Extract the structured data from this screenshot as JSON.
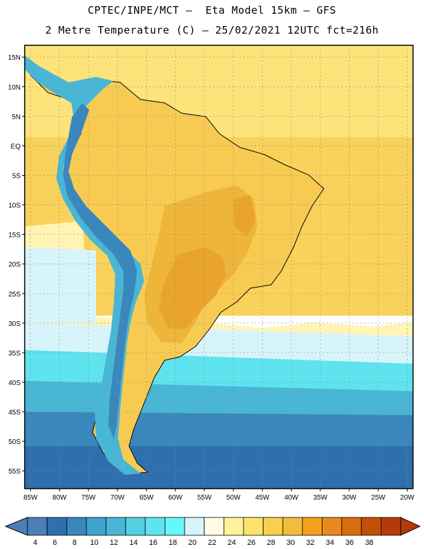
{
  "header": {
    "line1": "CPTEC/INPE/MCT –  Eta Model 15km – GFS",
    "line2": "2 Metre Temperature (C) – 25/02/2021 12UTC fct=216h"
  },
  "map": {
    "lat_labels": [
      "15N",
      "10N",
      "5N",
      "EQ",
      "5S",
      "10S",
      "15S",
      "20S",
      "25S",
      "30S",
      "35S",
      "40S",
      "45S",
      "50S",
      "55S"
    ],
    "lon_labels": [
      "85W",
      "80W",
      "75W",
      "70W",
      "65W",
      "60W",
      "55W",
      "50W",
      "45W",
      "40W",
      "35W",
      "30W",
      "25W",
      "20W"
    ],
    "lat_values": [
      15,
      10,
      5,
      0,
      -5,
      -10,
      -15,
      -20,
      -25,
      -30,
      -35,
      -40,
      -45,
      -50,
      -55
    ],
    "lon_values": [
      -85,
      -80,
      -75,
      -70,
      -65,
      -60,
      -55,
      -50,
      -45,
      -40,
      -35,
      -30,
      -25,
      -20
    ],
    "lat_range": [
      -58,
      17
    ],
    "lon_range": [
      -86,
      -19
    ]
  },
  "colorbar": {
    "labels": [
      "4",
      "6",
      "8",
      "10",
      "12",
      "14",
      "16",
      "18",
      "20",
      "22",
      "24",
      "26",
      "28",
      "30",
      "32",
      "34",
      "36",
      "38"
    ],
    "colors": [
      "#4a7fb8",
      "#2f6fae",
      "#3a87bd",
      "#3fa2cd",
      "#49b6d6",
      "#55cfe2",
      "#5fe3ef",
      "#66f7fb",
      "#d8f4fb",
      "#fffbe6",
      "#fff39a",
      "#fde26a",
      "#f8d04e",
      "#f2bd3d",
      "#f3a21d",
      "#ea8a1e",
      "#d86d10",
      "#c24e08",
      "#b53a0a"
    ],
    "low_color": "#4a7fb8",
    "high_color": "#b53a0a"
  },
  "colors": {
    "ocean_tropical": "#fde37a",
    "ocean_warm": "#f8d25a",
    "ocean_mild": "#fff4b4",
    "ocean_cool": "#d8f4fb",
    "ocean_cyan": "#5fe3ef",
    "ocean_mid": "#49b6d6",
    "ocean_cold": "#3a87bd",
    "ocean_polar": "#2f6fae",
    "land_base": "#f7cb52",
    "land_hot": "#efb43a",
    "land_hotter": "#e9a42c",
    "andes": "#49b6d6",
    "andes_high": "#3a87bd"
  }
}
